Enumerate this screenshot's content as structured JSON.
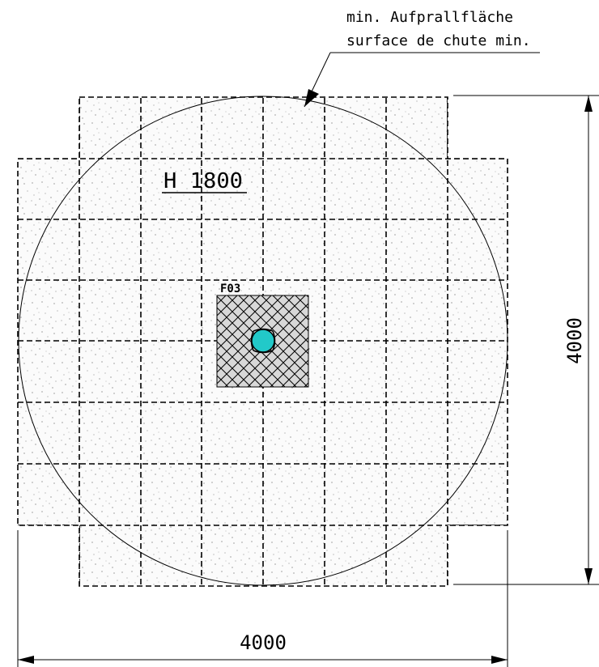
{
  "callout": {
    "line1": "min. Aufprallfläche",
    "line2": "surface de chute min."
  },
  "height_label": "H 1800",
  "footing_label": "F03",
  "dimensions": {
    "horizontal": "4000",
    "vertical": "4000"
  },
  "colors": {
    "line": "#000000",
    "speckle": "#555555",
    "post": "#22c9c9"
  }
}
